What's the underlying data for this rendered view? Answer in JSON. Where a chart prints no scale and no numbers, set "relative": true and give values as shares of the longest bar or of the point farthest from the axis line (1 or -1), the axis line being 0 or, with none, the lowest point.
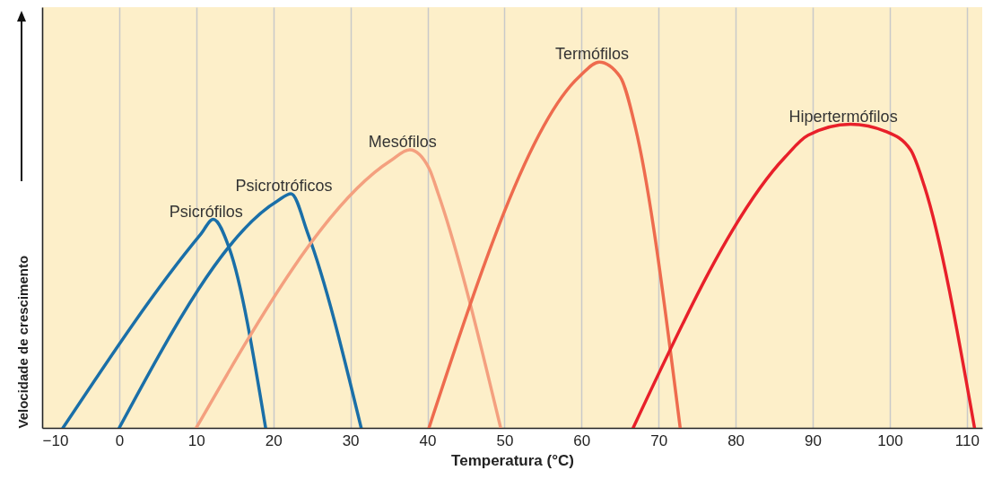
{
  "chart_data": {
    "type": "line",
    "xlabel": "Temperatura (°C)",
    "ylabel": "Velocidade de crescimento",
    "relative": true,
    "grid": "x",
    "tick_labels": "x",
    "line_style": "solid",
    "xlim": [
      -10,
      112
    ],
    "xticks": [
      {
        "value": -10,
        "label": "−10"
      },
      0,
      10,
      20,
      30,
      40,
      50,
      60,
      70,
      80,
      90,
      100,
      110
    ],
    "series": [
      {
        "name": "Psicrófilos",
        "color": "#1a6fa8",
        "x": [
          -7.3,
          10.6,
          12.2,
          14.3,
          19
        ],
        "values": [
          0,
          0.53,
          0.57,
          0.49,
          0
        ]
      },
      {
        "name": "Psicrotróficos",
        "color": "#1a6fa8",
        "x": [
          0,
          20.5,
          22.3,
          24.5,
          31.4
        ],
        "values": [
          0,
          0.62,
          0.64,
          0.53,
          0
        ]
      },
      {
        "name": "Mesófilos",
        "color": "#f4a07f",
        "x": [
          10,
          35.2,
          37.7,
          40.2,
          41.4,
          49.5
        ],
        "values": [
          0,
          0.73,
          0.76,
          0.71,
          0.64,
          0
        ]
      },
      {
        "name": "Termófilos",
        "color": "#ee6b4e",
        "x": [
          40.2,
          59.7,
          62.3,
          65,
          67,
          72.8
        ],
        "values": [
          0,
          0.96,
          1,
          0.96,
          0.82,
          0
        ]
      },
      {
        "name": "Hipertermófilos",
        "color": "#e8202a",
        "x": [
          66.7,
          86.4,
          89.4,
          94.9,
          99.5,
          102.7,
          104.5,
          111
        ],
        "values": [
          0,
          0.74,
          0.8,
          0.83,
          0.81,
          0.76,
          0.66,
          0
        ]
      }
    ]
  }
}
